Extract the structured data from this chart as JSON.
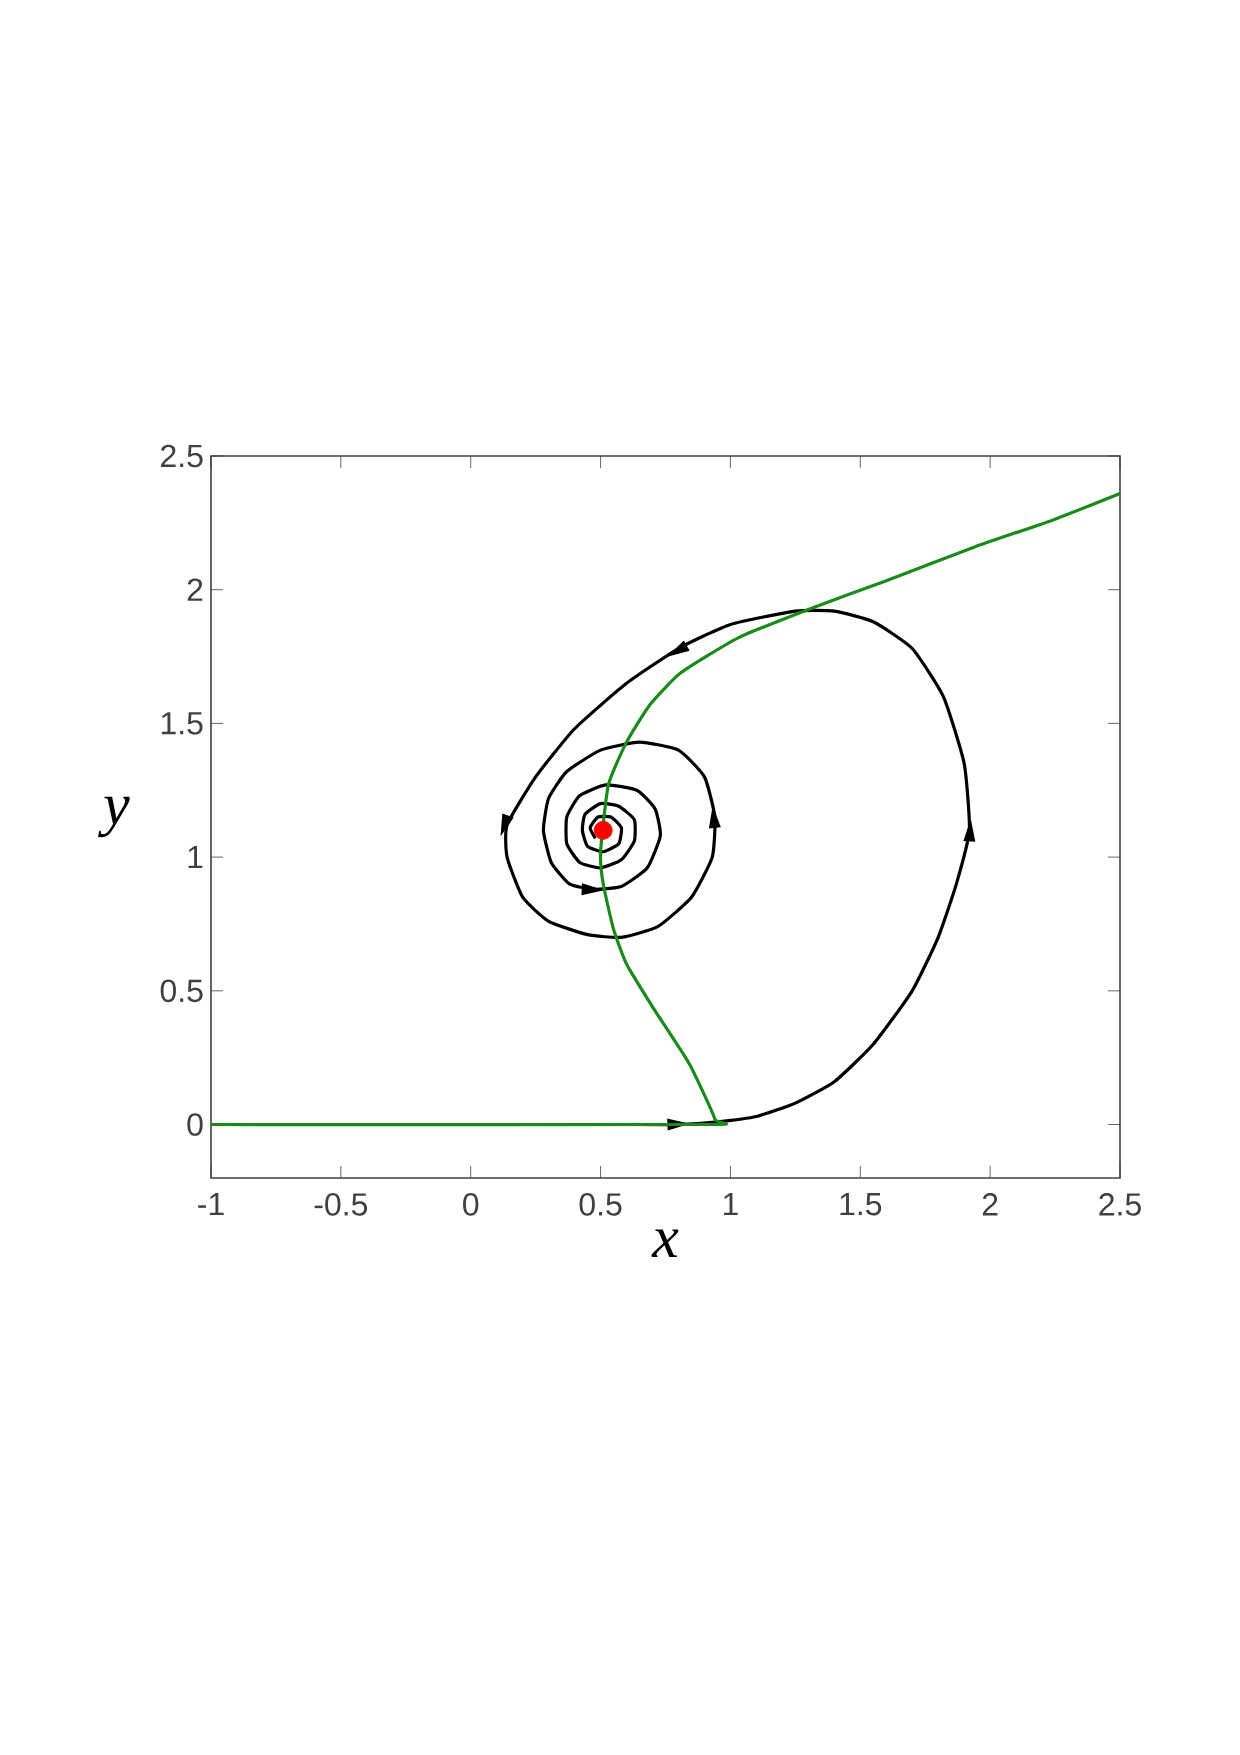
{
  "chart_data": {
    "type": "line",
    "xlabel": "x",
    "ylabel": "y",
    "xlim": [
      -1,
      2.5
    ],
    "ylim": [
      -0.2,
      2.5
    ],
    "xticks": [
      -1,
      -0.5,
      0,
      0.5,
      1,
      1.5,
      2,
      2.5
    ],
    "yticks": [
      0,
      0.5,
      1,
      1.5,
      2,
      2.5
    ],
    "grid": false,
    "series": [
      {
        "color": "#000000",
        "x": [
          0.65,
          0.8,
          0.95,
          1.1,
          1.25,
          1.4,
          1.55,
          1.7,
          1.8,
          1.87,
          1.92,
          1.9,
          1.82,
          1.7,
          1.55,
          1.4,
          1.25,
          1.0,
          0.8,
          0.6,
          0.4,
          0.25,
          0.14,
          0.14,
          0.2,
          0.3,
          0.45,
          0.58,
          0.72,
          0.85,
          0.93,
          0.94,
          0.9,
          0.8,
          0.65,
          0.5,
          0.37,
          0.3,
          0.28,
          0.31,
          0.38,
          0.47,
          0.58,
          0.68,
          0.73,
          0.71,
          0.64,
          0.52,
          0.42,
          0.37,
          0.37,
          0.42,
          0.5,
          0.58,
          0.63,
          0.63,
          0.57,
          0.5,
          0.44,
          0.43,
          0.45,
          0.51,
          0.57,
          0.58,
          0.54,
          0.49,
          0.46,
          0.48
        ],
        "values": [
          0,
          0,
          0.01,
          0.03,
          0.08,
          0.16,
          0.3,
          0.5,
          0.7,
          0.9,
          1.1,
          1.35,
          1.6,
          1.78,
          1.88,
          1.92,
          1.92,
          1.87,
          1.78,
          1.65,
          1.48,
          1.3,
          1.12,
          1.0,
          0.85,
          0.76,
          0.71,
          0.7,
          0.74,
          0.85,
          1.0,
          1.15,
          1.3,
          1.4,
          1.43,
          1.4,
          1.32,
          1.22,
          1.1,
          0.98,
          0.9,
          0.88,
          0.89,
          0.96,
          1.08,
          1.18,
          1.25,
          1.27,
          1.23,
          1.15,
          1.05,
          0.98,
          0.96,
          0.99,
          1.06,
          1.14,
          1.19,
          1.2,
          1.16,
          1.1,
          1.04,
          1.02,
          1.05,
          1.11,
          1.15,
          1.15,
          1.11,
          1.07
        ]
      },
      {
        "color": "#1a8a1a",
        "x": [
          -1,
          0.9,
          0.94,
          0.84,
          0.7,
          0.6,
          0.55,
          0.51,
          0.5,
          0.53,
          0.6,
          0.69,
          0.81,
          1.03,
          1.31,
          1.59,
          1.94,
          2.24,
          2.5
        ],
        "values": [
          0,
          0,
          0.02,
          0.23,
          0.44,
          0.6,
          0.73,
          0.9,
          1.02,
          1.27,
          1.43,
          1.57,
          1.69,
          1.82,
          1.93,
          2.03,
          2.16,
          2.26,
          2.36
        ]
      },
      {
        "color": "#ff0000",
        "type": "scatter",
        "marker": "circle",
        "x": [
          0.51
        ],
        "values": [
          1.1
        ]
      }
    ]
  }
}
